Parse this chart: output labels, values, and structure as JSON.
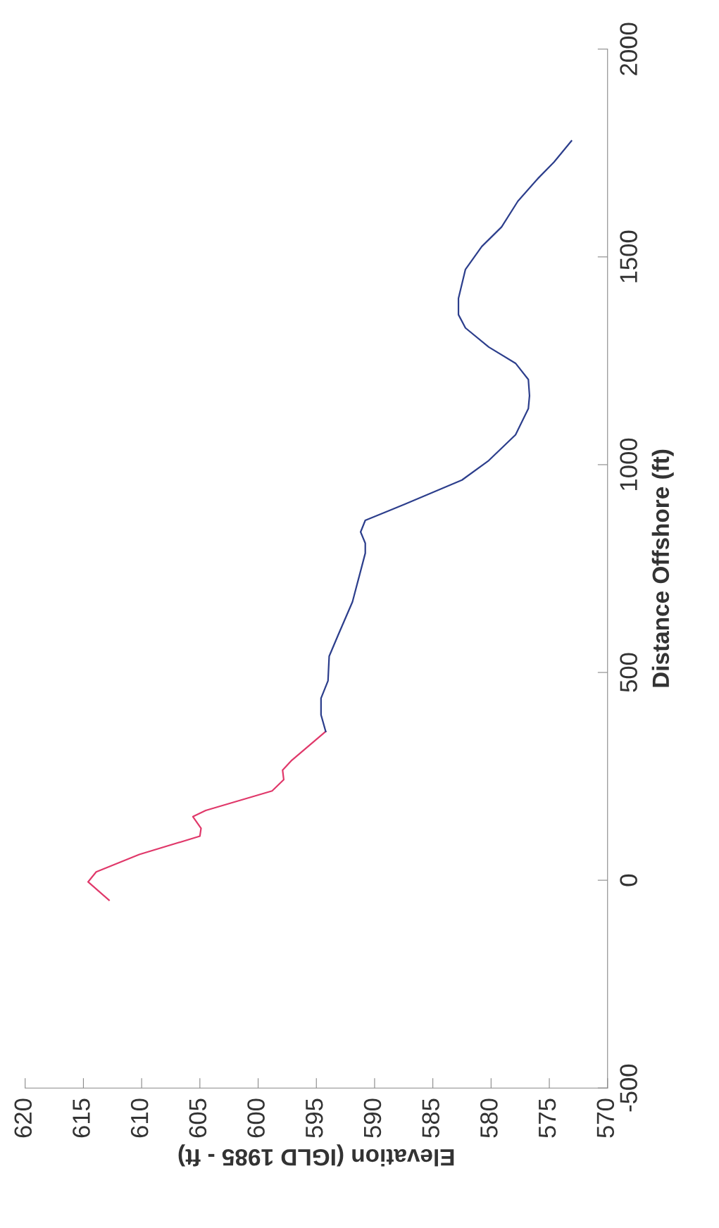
{
  "chart_data": {
    "type": "line",
    "xlabel": "Elevation (IGLD 1985 - ft)",
    "ylabel": "Distance Offshore (ft)",
    "xlim": [
      620,
      570
    ],
    "xticks": [
      570,
      575,
      580,
      585,
      590,
      595,
      600,
      605,
      610,
      615,
      620
    ],
    "ylim": [
      -500,
      2000
    ],
    "yticks": [
      -500,
      0,
      500,
      1000,
      1500,
      2000
    ],
    "grid": false,
    "legend": false,
    "marker": "none",
    "line_style": "solid",
    "series": [
      {
        "color": "#e0386a",
        "values": [
          -48,
          -4,
          20,
          62,
          106,
          125,
          153,
          168,
          215,
          242,
          265,
          289,
          358
        ],
        "x": [
          612.8,
          614.6,
          613.9,
          610.2,
          605.0,
          604.9,
          605.6,
          604.5,
          598.8,
          597.8,
          597.9,
          597.1,
          594.2
        ]
      },
      {
        "color": "#2c3e8c",
        "values": [
          358,
          398,
          438,
          480,
          539,
          592,
          670,
          787,
          811,
          838,
          866,
          889,
          905,
          963,
          1010,
          1072,
          1135,
          1166,
          1205,
          1244,
          1283,
          1329,
          1361,
          1400,
          1470,
          1525,
          1572,
          1634,
          1688,
          1728,
          1779
        ],
        "x": [
          594.2,
          594.6,
          594.6,
          594.0,
          593.9,
          593.1,
          591.9,
          590.8,
          590.8,
          591.2,
          590.8,
          588.8,
          587.4,
          582.5,
          580.2,
          577.9,
          576.8,
          576.7,
          576.8,
          577.9,
          580.2,
          582.2,
          582.8,
          582.8,
          582.2,
          580.8,
          579.1,
          577.7,
          576.0,
          574.6,
          573.1
        ]
      }
    ]
  }
}
